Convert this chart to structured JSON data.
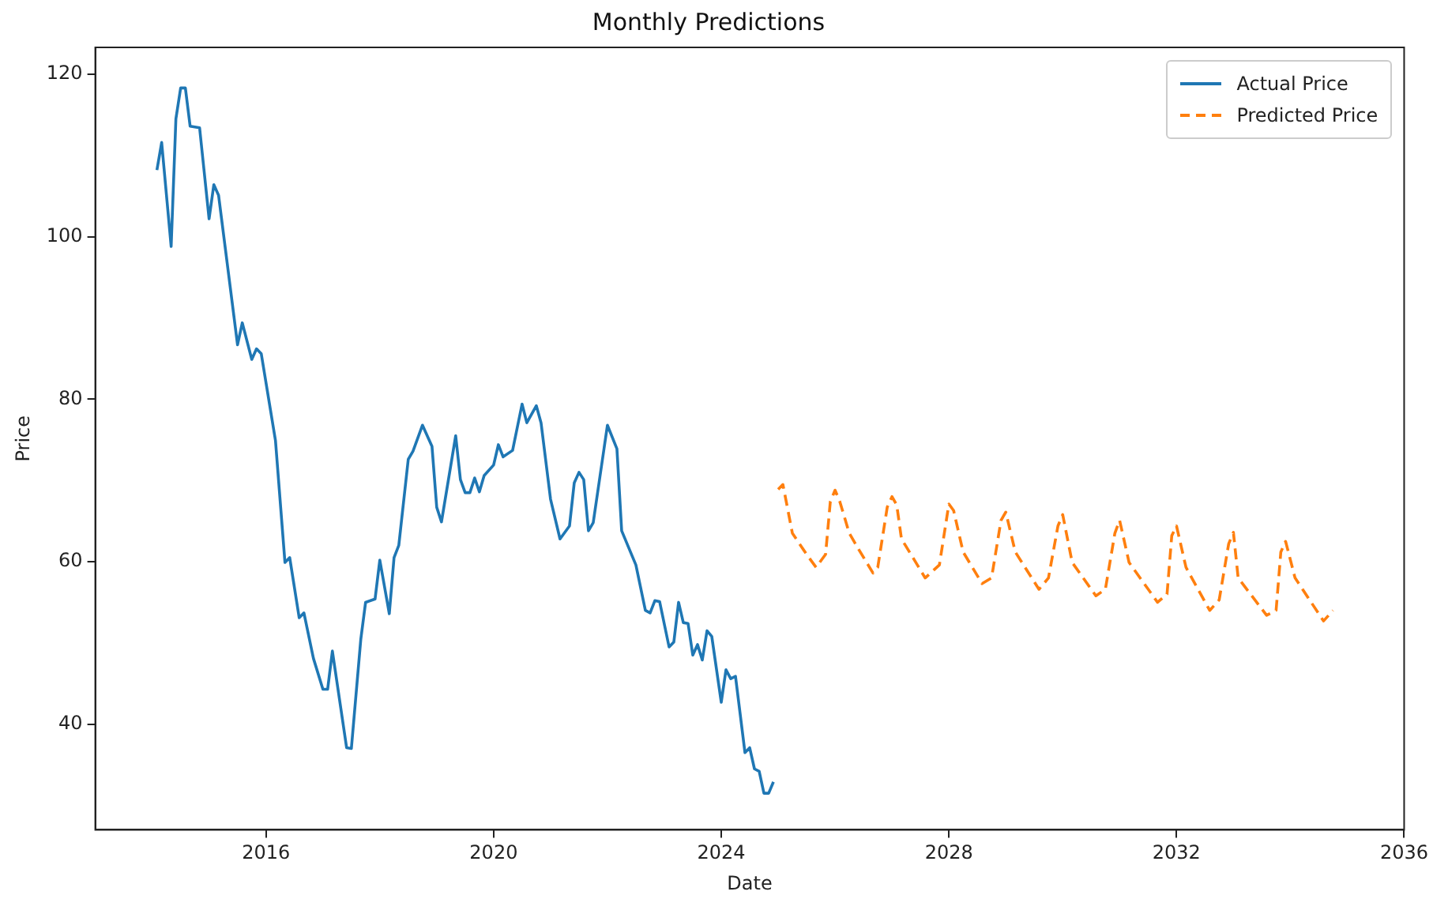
{
  "chart_data": {
    "type": "line",
    "title": "Monthly Predictions",
    "xlabel": "Date",
    "ylabel": "Price",
    "xlim": [
      "2013-01",
      "2036-01"
    ],
    "xticks": [
      "2016",
      "2020",
      "2024",
      "2028",
      "2032",
      "2036"
    ],
    "ylim": [
      27,
      123.3
    ],
    "yticks": [
      40,
      60,
      80,
      100,
      120
    ],
    "grid": false,
    "legend": "top right",
    "marker": "none",
    "series": [
      {
        "name": "Actual Price",
        "color": "#1f77b4",
        "line_style": "solid",
        "x": [
          "2014-02",
          "2014-03",
          "2014-05",
          "2014-06",
          "2014-07",
          "2014-08",
          "2014-09",
          "2014-11",
          "2015-01",
          "2015-02",
          "2015-03",
          "2015-07",
          "2015-08",
          "2015-10",
          "2015-11",
          "2015-12",
          "2016-03",
          "2016-05",
          "2016-06",
          "2016-08",
          "2016-09",
          "2016-11",
          "2017-01",
          "2017-02",
          "2017-03",
          "2017-06",
          "2017-07",
          "2017-09",
          "2017-10",
          "2017-12",
          "2018-01",
          "2018-03",
          "2018-04",
          "2018-05",
          "2018-07",
          "2018-08",
          "2018-10",
          "2018-12",
          "2019-01",
          "2019-02",
          "2019-05",
          "2019-06",
          "2019-07",
          "2019-08",
          "2019-09",
          "2019-10",
          "2019-11",
          "2020-01",
          "2020-02",
          "2020-03",
          "2020-05",
          "2020-07",
          "2020-08",
          "2020-10",
          "2020-11",
          "2021-01",
          "2021-03",
          "2021-05",
          "2021-06",
          "2021-07",
          "2021-08",
          "2021-09",
          "2021-10",
          "2022-01",
          "2022-03",
          "2022-04",
          "2022-07",
          "2022-09",
          "2022-10",
          "2022-11",
          "2022-12",
          "2023-02",
          "2023-03",
          "2023-04",
          "2023-05",
          "2023-06",
          "2023-07",
          "2023-08",
          "2023-09",
          "2023-10",
          "2023-11",
          "2024-01",
          "2024-02",
          "2024-03",
          "2024-04",
          "2024-06",
          "2024-07",
          "2024-08",
          "2024-09",
          "2024-10",
          "2024-11",
          "2024-12"
        ],
        "values": [
          108.2,
          111.6,
          98.8,
          114.5,
          118.3,
          118.3,
          113.6,
          113.4,
          102.2,
          106.4,
          105.1,
          86.7,
          89.4,
          84.9,
          86.2,
          85.6,
          74.9,
          59.9,
          60.5,
          53.1,
          53.7,
          48.1,
          44.3,
          44.3,
          49.0,
          37.1,
          37.0,
          50.5,
          55.0,
          55.4,
          60.2,
          53.6,
          60.5,
          62.0,
          72.6,
          73.6,
          76.8,
          74.2,
          66.7,
          64.9,
          75.5,
          70.1,
          68.5,
          68.5,
          70.3,
          68.6,
          70.6,
          71.9,
          74.4,
          72.9,
          73.7,
          79.4,
          77.1,
          79.2,
          77.1,
          67.7,
          62.8,
          64.4,
          69.7,
          71.0,
          70.1,
          63.8,
          64.8,
          76.8,
          73.9,
          63.8,
          59.6,
          54.0,
          53.7,
          55.2,
          55.1,
          49.5,
          50.1,
          55.0,
          52.5,
          52.4,
          48.5,
          49.8,
          47.9,
          51.5,
          50.8,
          42.7,
          46.7,
          45.6,
          45.9,
          36.5,
          37.1,
          34.5,
          34.2,
          31.5,
          31.5,
          32.9
        ]
      },
      {
        "name": "Predicted Price",
        "color": "#ff7f0e",
        "line_style": "dashed",
        "x": [
          "2025-01",
          "2025-02",
          "2025-04",
          "2025-07",
          "2025-09",
          "2025-11",
          "2025-12",
          "2026-01",
          "2026-02",
          "2026-04",
          "2026-06",
          "2026-09",
          "2026-10",
          "2026-12",
          "2027-01",
          "2027-02",
          "2027-03",
          "2027-05",
          "2027-08",
          "2027-11",
          "2028-01",
          "2028-02",
          "2028-04",
          "2028-08",
          "2028-10",
          "2028-12",
          "2029-01",
          "2029-03",
          "2029-08",
          "2029-10",
          "2029-12",
          "2030-01",
          "2030-03",
          "2030-08",
          "2030-10",
          "2030-12",
          "2031-01",
          "2031-03",
          "2031-09",
          "2031-11",
          "2031-12",
          "2032-01",
          "2032-03",
          "2032-08",
          "2032-10",
          "2032-12",
          "2033-01",
          "2033-02",
          "2033-08",
          "2033-10",
          "2033-11",
          "2033-12",
          "2034-02",
          "2034-08",
          "2034-10"
        ],
        "values": [
          68.9,
          69.5,
          63.5,
          60.9,
          59.3,
          60.9,
          67.4,
          68.8,
          67.4,
          63.5,
          61.5,
          58.6,
          59.3,
          66.7,
          68.0,
          67.0,
          62.8,
          60.9,
          58.0,
          59.6,
          67.1,
          66.3,
          61.2,
          57.3,
          58.0,
          65.1,
          66.1,
          61.2,
          56.6,
          58.0,
          64.4,
          65.8,
          59.9,
          55.8,
          56.6,
          63.5,
          65.1,
          59.9,
          55.0,
          56.0,
          63.2,
          64.4,
          59.3,
          54.0,
          55.3,
          62.2,
          63.6,
          58.0,
          53.4,
          54.0,
          61.2,
          62.5,
          58.0,
          52.7,
          54.0
        ]
      }
    ]
  }
}
